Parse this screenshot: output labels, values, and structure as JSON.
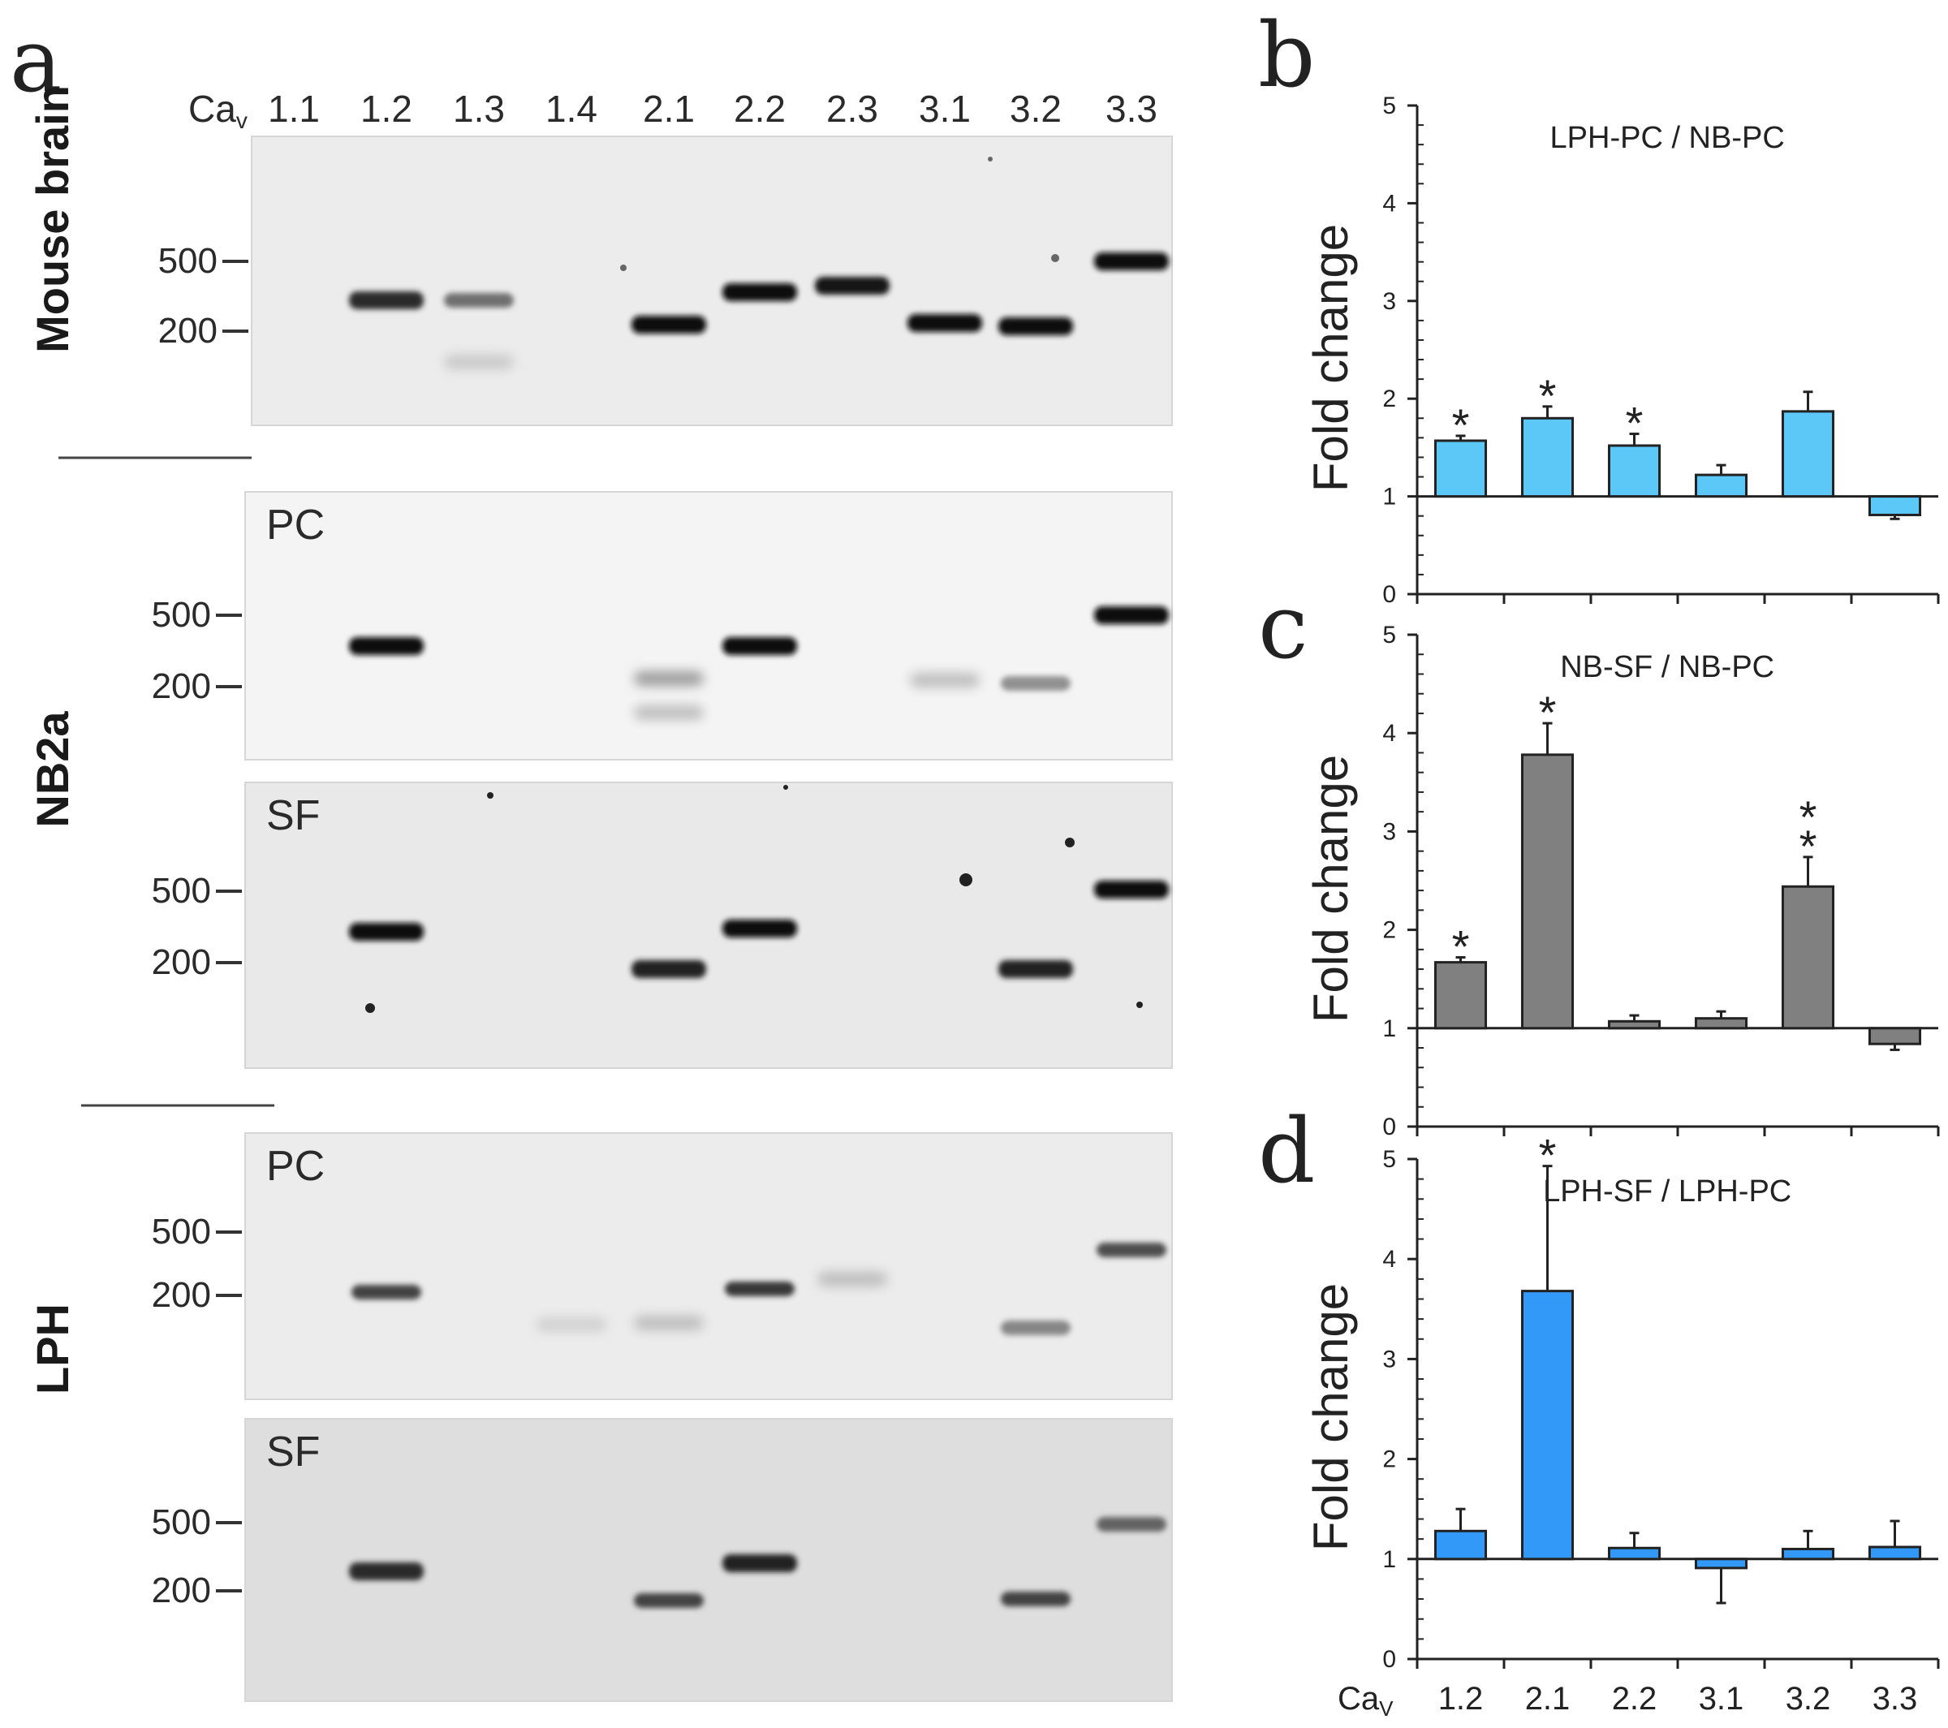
{
  "panel_a": {
    "letter": "a",
    "lane_prefix": "Ca",
    "lane_prefix_sub": "v",
    "lanes": [
      "1.1",
      "1.2",
      "1.3",
      "1.4",
      "2.1",
      "2.2",
      "2.3",
      "3.1",
      "3.2",
      "3.3"
    ],
    "rows": [
      {
        "group": "Mouse brain",
        "tag": "",
        "markers": [
          "500",
          "200"
        ],
        "bands": [
          {
            "lane": "1.2",
            "i": 0.85
          },
          {
            "lane": "1.3",
            "i": 0.55
          },
          {
            "lane": "1.3",
            "i": 0.15,
            "low": true
          },
          {
            "lane": "2.1",
            "i": 1
          },
          {
            "lane": "2.2",
            "i": 1
          },
          {
            "lane": "2.3",
            "i": 0.95
          },
          {
            "lane": "3.1",
            "i": 1
          },
          {
            "lane": "3.2",
            "i": 1
          },
          {
            "lane": "3.3",
            "i": 1
          }
        ]
      },
      {
        "group": "NB2a",
        "tag": "PC",
        "markers": [
          "500",
          "200"
        ],
        "bands": [
          {
            "lane": "1.2",
            "i": 1
          },
          {
            "lane": "2.1",
            "i": 0.35
          },
          {
            "lane": "2.1",
            "i": 0.2,
            "low": true
          },
          {
            "lane": "2.2",
            "i": 1
          },
          {
            "lane": "3.1",
            "i": 0.2
          },
          {
            "lane": "3.2",
            "i": 0.4
          },
          {
            "lane": "3.3",
            "i": 1
          }
        ]
      },
      {
        "group": "NB2a",
        "tag": "SF",
        "markers": [
          "500",
          "200"
        ],
        "bands": [
          {
            "lane": "1.2",
            "i": 1
          },
          {
            "lane": "2.1",
            "i": 0.9
          },
          {
            "lane": "2.2",
            "i": 1
          },
          {
            "lane": "3.2",
            "i": 0.9
          },
          {
            "lane": "3.3",
            "i": 1
          }
        ]
      },
      {
        "group": "LPH",
        "tag": "PC",
        "markers": [
          "500",
          "200"
        ],
        "bands": [
          {
            "lane": "1.2",
            "i": 0.75
          },
          {
            "lane": "1.4",
            "i": 0.12
          },
          {
            "lane": "2.1",
            "i": 0.2
          },
          {
            "lane": "2.2",
            "i": 0.8
          },
          {
            "lane": "2.3",
            "i": 0.2
          },
          {
            "lane": "3.2",
            "i": 0.45
          },
          {
            "lane": "3.3",
            "i": 0.7
          }
        ]
      },
      {
        "group": "LPH",
        "tag": "SF",
        "markers": [
          "500",
          "200"
        ],
        "bands": [
          {
            "lane": "1.2",
            "i": 0.85
          },
          {
            "lane": "2.1",
            "i": 0.75
          },
          {
            "lane": "2.2",
            "i": 0.9
          },
          {
            "lane": "3.2",
            "i": 0.75
          },
          {
            "lane": "3.3",
            "i": 0.6
          }
        ]
      }
    ],
    "group_labels": [
      "Mouse brain",
      "NB2a",
      "LPH"
    ]
  },
  "chart_data": [
    {
      "type": "bar",
      "letter": "b",
      "title": "LPH-PC / NB-PC",
      "ylabel": "Fold change",
      "ylim": [
        0,
        5
      ],
      "yticks": [
        "0",
        "1",
        "2",
        "3",
        "4",
        "5"
      ],
      "baseline": 1,
      "categories": [
        "1.2",
        "2.1",
        "2.2",
        "3.1",
        "3.2",
        "3.3"
      ],
      "values": [
        1.57,
        1.8,
        1.52,
        1.22,
        1.87,
        0.81
      ],
      "errors": [
        0.05,
        0.12,
        0.12,
        0.1,
        0.2,
        0.04
      ],
      "markers": [
        "*",
        "*",
        "*",
        "",
        "",
        ""
      ],
      "color": "#5bc8f8"
    },
    {
      "type": "bar",
      "letter": "c",
      "title": "NB-SF / NB-PC",
      "ylabel": "Fold change",
      "ylim": [
        0,
        5
      ],
      "yticks": [
        "0",
        "1",
        "2",
        "3",
        "4",
        "5"
      ],
      "baseline": 1,
      "categories": [
        "1.2",
        "2.1",
        "2.2",
        "3.1",
        "3.2",
        "3.3"
      ],
      "values": [
        1.67,
        3.78,
        1.07,
        1.1,
        2.44,
        0.84
      ],
      "errors": [
        0.05,
        0.32,
        0.06,
        0.07,
        0.3,
        0.06
      ],
      "markers": [
        "*",
        "*",
        "",
        "",
        "**",
        ""
      ],
      "color": "#808080"
    },
    {
      "type": "bar",
      "letter": "d",
      "title": "LPH-SF / LPH-PC",
      "ylabel": "Fold change",
      "ylim": [
        0,
        5
      ],
      "yticks": [
        "0",
        "1",
        "2",
        "3",
        "4",
        "5"
      ],
      "baseline": 1,
      "categories": [
        "1.2",
        "2.1",
        "2.2",
        "3.1",
        "3.2",
        "3.3"
      ],
      "values": [
        1.28,
        3.68,
        1.11,
        0.91,
        1.1,
        1.12
      ],
      "errors": [
        0.22,
        1.25,
        0.15,
        0.35,
        0.18,
        0.26
      ],
      "markers": [
        "",
        "*",
        "",
        "",
        "",
        ""
      ],
      "color": "#3399f8",
      "xlabel_prefix": "Ca",
      "xlabel_sub": "V"
    }
  ]
}
